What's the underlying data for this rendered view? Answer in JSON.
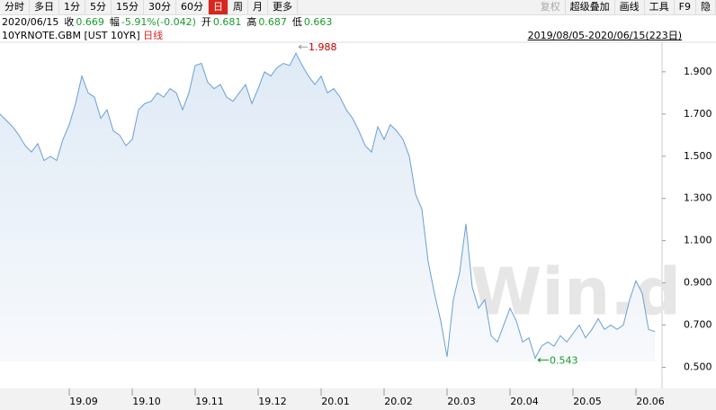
{
  "toolbar": {
    "left": [
      "分时",
      "多日",
      "1分",
      "5分",
      "15分",
      "30分",
      "60分",
      "日",
      "周",
      "月",
      "更多"
    ],
    "selected": "日",
    "right": [
      "复权",
      "超级叠加",
      "画线",
      "工具",
      "F9",
      "隐"
    ]
  },
  "info": {
    "date": "2020/06/15",
    "items": [
      {
        "label": "收",
        "value": "0.669"
      },
      {
        "label": "幅",
        "value": "-5.91%(-0.042)"
      },
      {
        "label": "开",
        "value": "0.681"
      },
      {
        "label": "高",
        "value": "0.687"
      },
      {
        "label": "低",
        "value": "0.663"
      }
    ]
  },
  "instrument": {
    "name": "10YRNOTE.GBM [UST 10YR]",
    "period": "日线",
    "range": "2019/08/05-2020/06/15(223日)"
  },
  "chart_data": {
    "type": "line",
    "watermark": "Win.d",
    "color": "#6a9fd4",
    "high": 1.988,
    "low": 0.543,
    "categories": [
      null,
      null,
      null,
      null,
      null,
      null,
      null,
      null,
      null,
      null,
      null,
      "19.09",
      null,
      null,
      null,
      null,
      null,
      null,
      null,
      null,
      null,
      "19.10",
      null,
      null,
      null,
      null,
      null,
      null,
      null,
      null,
      null,
      "19.11",
      null,
      null,
      null,
      null,
      null,
      null,
      null,
      null,
      null,
      "19.12",
      null,
      null,
      null,
      null,
      null,
      null,
      null,
      null,
      null,
      "20.01",
      null,
      null,
      null,
      null,
      null,
      null,
      null,
      null,
      null,
      "20.02",
      null,
      null,
      null,
      null,
      null,
      null,
      null,
      null,
      null,
      "20.03",
      null,
      null,
      null,
      null,
      null,
      null,
      null,
      null,
      null,
      "20.04",
      null,
      null,
      null,
      null,
      null,
      null,
      null,
      null,
      null,
      "20.05",
      null,
      null,
      null,
      null,
      null,
      null,
      null,
      null,
      null,
      "20.06",
      null,
      null,
      null
    ],
    "values": [
      1.7,
      1.67,
      1.64,
      1.6,
      1.55,
      1.52,
      1.56,
      1.48,
      1.5,
      1.48,
      1.58,
      1.65,
      1.75,
      1.88,
      1.8,
      1.78,
      1.68,
      1.72,
      1.62,
      1.6,
      1.55,
      1.58,
      1.72,
      1.75,
      1.76,
      1.8,
      1.78,
      1.82,
      1.8,
      1.72,
      1.8,
      1.93,
      1.94,
      1.85,
      1.82,
      1.84,
      1.78,
      1.76,
      1.8,
      1.84,
      1.75,
      1.82,
      1.9,
      1.88,
      1.92,
      1.94,
      1.93,
      1.988,
      1.93,
      1.88,
      1.84,
      1.88,
      1.8,
      1.82,
      1.78,
      1.72,
      1.68,
      1.62,
      1.55,
      1.52,
      1.64,
      1.58,
      1.65,
      1.62,
      1.58,
      1.5,
      1.32,
      1.25,
      1.0,
      0.85,
      0.72,
      0.55,
      0.82,
      0.95,
      1.18,
      0.88,
      0.78,
      0.82,
      0.65,
      0.62,
      0.7,
      0.78,
      0.72,
      0.62,
      0.64,
      0.543,
      0.6,
      0.62,
      0.6,
      0.65,
      0.62,
      0.66,
      0.7,
      0.64,
      0.68,
      0.73,
      0.68,
      0.7,
      0.68,
      0.7,
      0.82,
      0.91,
      0.85,
      0.68,
      0.669
    ],
    "ylim": [
      0.4,
      2.04
    ],
    "yticks": [
      {
        "value": 0.5,
        "label": "0.500"
      },
      {
        "value": 0.7,
        "label": "0.700"
      },
      {
        "value": 0.9,
        "label": "0.900"
      },
      {
        "value": 1.1,
        "label": "1.100"
      },
      {
        "value": 1.3,
        "label": "1.300"
      },
      {
        "value": 1.5,
        "label": "1.500"
      },
      {
        "value": 1.7,
        "label": "1.700"
      },
      {
        "value": 1.9,
        "label": "1.900"
      }
    ]
  }
}
